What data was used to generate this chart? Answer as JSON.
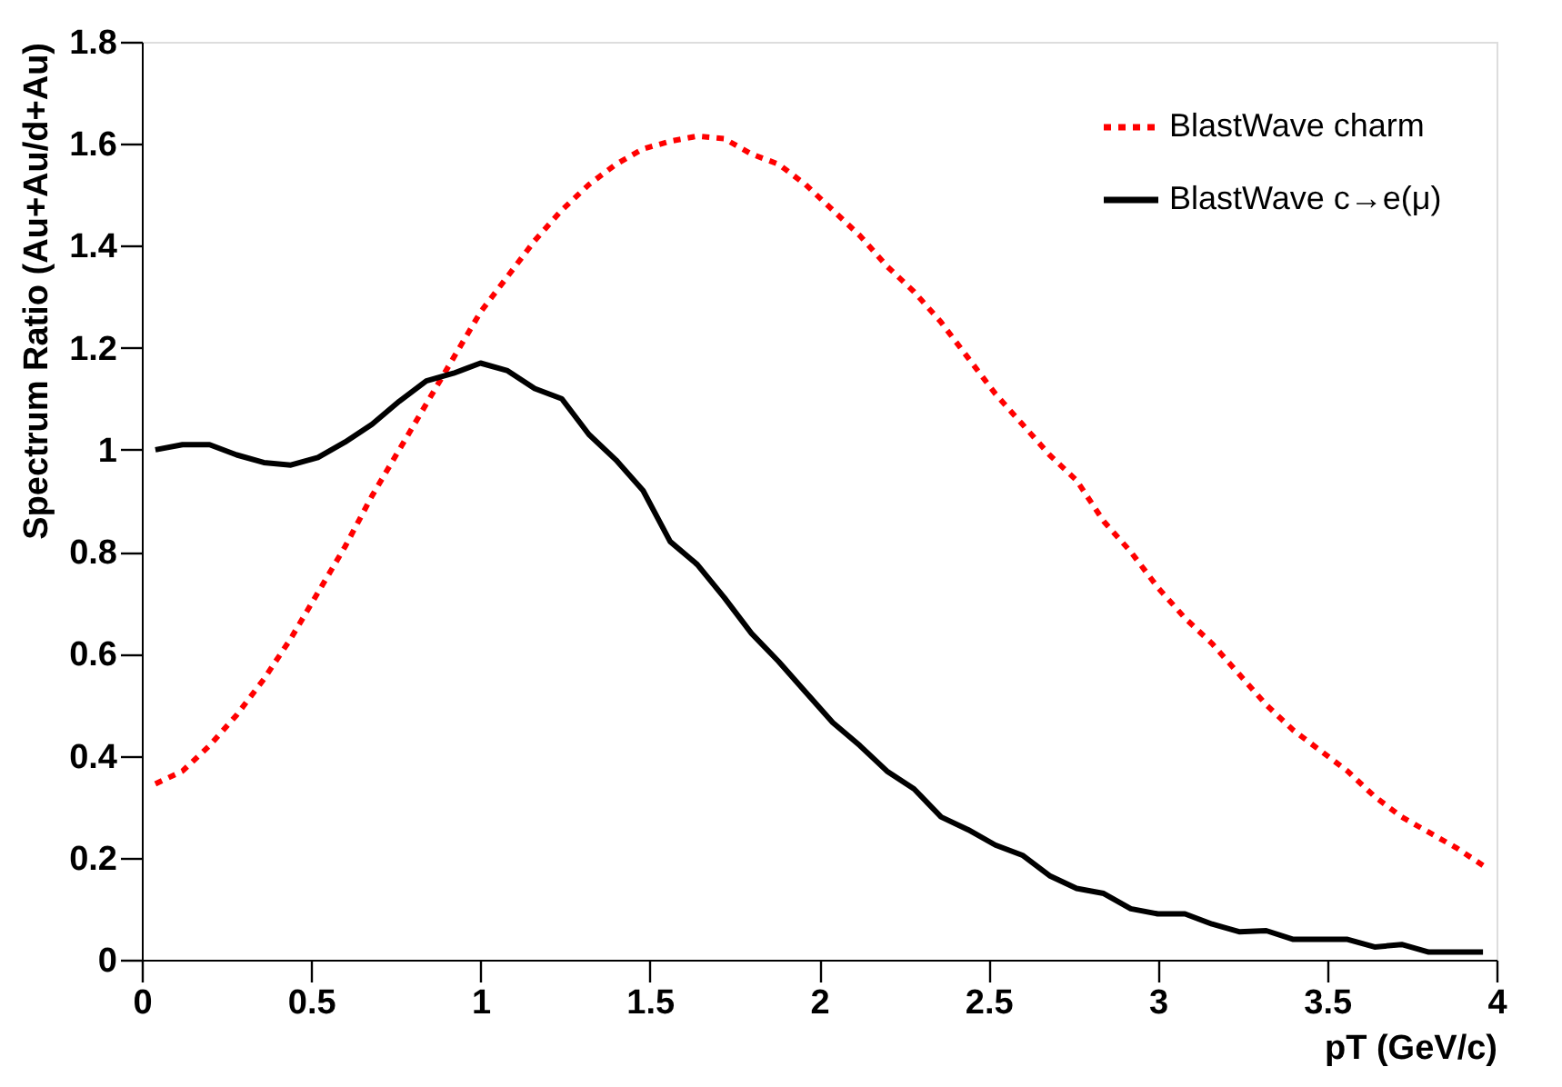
{
  "chart_data": {
    "type": "line",
    "xlabel": "pT (GeV/c)",
    "ylabel": "Spectrum Ratio (Au+Au/d+Au)",
    "x": [
      0.04,
      0.12,
      0.2,
      0.28,
      0.36,
      0.44,
      0.52,
      0.6,
      0.68,
      0.76,
      0.84,
      0.92,
      1.0,
      1.08,
      1.16,
      1.24,
      1.32,
      1.4,
      1.48,
      1.56,
      1.64,
      1.72,
      1.8,
      1.88,
      1.96,
      2.04,
      2.12,
      2.2,
      2.28,
      2.36,
      2.44,
      2.52,
      2.6,
      2.68,
      2.76,
      2.84,
      2.92,
      3.0,
      3.08,
      3.16,
      3.24,
      3.32,
      3.4,
      3.48,
      3.56,
      3.64,
      3.72,
      3.8,
      3.88,
      3.96
    ],
    "series": [
      {
        "name": "BlastWave charm",
        "color": "#ff0000",
        "line_style": "dotted",
        "values": [
          0.345,
          0.37,
          0.42,
          0.48,
          0.55,
          0.63,
          0.72,
          0.81,
          0.91,
          1.0,
          1.09,
          1.18,
          1.27,
          1.34,
          1.41,
          1.47,
          1.52,
          1.56,
          1.59,
          1.605,
          1.615,
          1.61,
          1.58,
          1.56,
          1.52,
          1.47,
          1.42,
          1.36,
          1.31,
          1.25,
          1.18,
          1.11,
          1.05,
          0.99,
          0.94,
          0.86,
          0.8,
          0.73,
          0.67,
          0.62,
          0.56,
          0.5,
          0.45,
          0.41,
          0.37,
          0.32,
          0.28,
          0.25,
          0.22,
          0.185
        ]
      },
      {
        "name": "BlastWave c→e(μ)",
        "color": "#000000",
        "line_style": "solid",
        "values": [
          1.0,
          1.01,
          1.01,
          0.99,
          0.975,
          0.97,
          0.985,
          1.015,
          1.05,
          1.095,
          1.135,
          1.15,
          1.17,
          1.155,
          1.12,
          1.1,
          1.03,
          0.98,
          0.92,
          0.82,
          0.775,
          0.71,
          0.64,
          0.585,
          0.525,
          0.465,
          0.42,
          0.37,
          0.335,
          0.28,
          0.255,
          0.225,
          0.205,
          0.165,
          0.14,
          0.13,
          0.1,
          0.09,
          0.09,
          0.07,
          0.055,
          0.057,
          0.04,
          0.04,
          0.04,
          0.025,
          0.03,
          0.015,
          0.015,
          0.015
        ]
      }
    ],
    "xlim": [
      0,
      4
    ],
    "xticks": [
      0,
      0.5,
      1,
      1.5,
      2,
      2.5,
      3,
      3.5,
      4
    ],
    "ylim": [
      0,
      1.8
    ],
    "yticks": [
      0,
      0.2,
      0.4,
      0.6,
      0.8,
      1,
      1.2,
      1.4,
      1.6,
      1.8
    ],
    "grid": false,
    "legend": "top right",
    "marker": "none"
  }
}
